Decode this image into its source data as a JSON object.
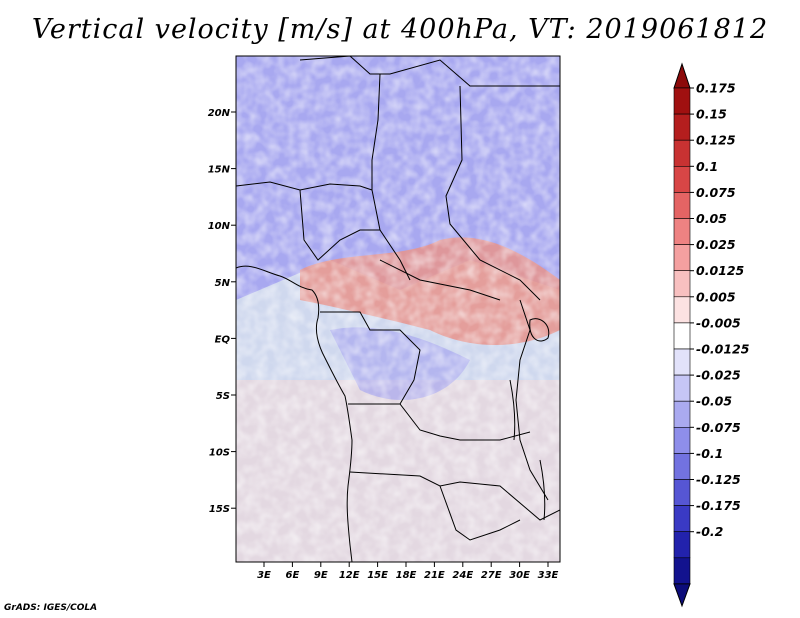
{
  "title": "Vertical velocity [m/s] at 400hPa, VT: 2019061812",
  "credit": "GrADS: IGES/COLA",
  "map": {
    "lon_labels": [
      "3E",
      "6E",
      "9E",
      "12E",
      "15E",
      "18E",
      "21E",
      "24E",
      "27E",
      "30E",
      "33E"
    ],
    "lat_labels": [
      "20N",
      "15N",
      "10N",
      "5N",
      "EQ",
      "5S",
      "10S",
      "15S"
    ]
  },
  "colorbar": {
    "labels": [
      "0.175",
      "0.15",
      "0.125",
      "0.1",
      "0.075",
      "0.05",
      "0.025",
      "0.0125",
      "0.005",
      "-0.005",
      "-0.0125",
      "-0.025",
      "-0.05",
      "-0.075",
      "-0.1",
      "-0.125",
      "-0.175",
      "-0.2"
    ],
    "colors": [
      "#a01010",
      "#b41e1e",
      "#c83232",
      "#d84646",
      "#e46464",
      "#ee8282",
      "#f4a0a0",
      "#f8c0c0",
      "#fce2e2",
      "#ffffff",
      "#e2e2fa",
      "#c6c6f6",
      "#aaaaf0",
      "#8e8eea",
      "#7272e0",
      "#5656d4",
      "#3a3ac4",
      "#2222ac",
      "#12128e"
    ],
    "top_arrow_color": "#8c0a0a",
    "bottom_arrow_color": "#0c0c7a"
  },
  "field_colors": {
    "ocean": "#cfd8ee",
    "north": "#a8a8f0",
    "center_red": "#e8948c",
    "south": "#ead8dc"
  }
}
